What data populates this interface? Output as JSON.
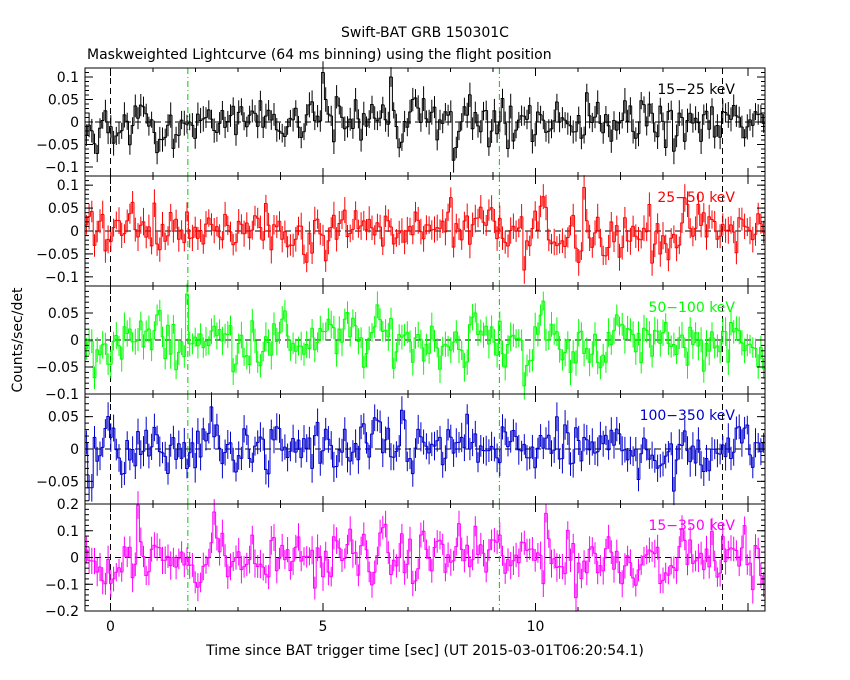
{
  "title": "Swift-BAT GRB 150301C",
  "subtitle": "Maskweighted Lightcurve (64 ms binning) using the flight position",
  "xlabel": "Time since BAT trigger time [sec] (UT 2015-03-01T06:20:54.1)",
  "ylabel": "Counts/sec/det",
  "chart_data": {
    "type": "line",
    "title": "Swift-BAT GRB 150301C",
    "subtitle": "Maskweighted Lightcurve (64 ms binning) using the flight position",
    "xlabel": "Time since BAT trigger time [sec] (UT 2015-03-01T06:20:54.1)",
    "ylabel": "Counts/sec/det",
    "xlim": [
      -0.6,
      15.4
    ],
    "x_ticks": [
      0,
      5,
      10
    ],
    "bin_width_s": 0.064,
    "vertical_markers": {
      "black_dashed": [
        0,
        14.4
      ],
      "green_dashdot": [
        1.82,
        9.15
      ]
    },
    "panels": [
      {
        "name": "15-25 keV",
        "label": "15−25 keV",
        "color": "#000000",
        "ylim": [
          -0.12,
          0.12
        ],
        "y_ticks": [
          0.1,
          0.05,
          0,
          -0.05,
          -0.1
        ],
        "y_tick_labels": [
          "0.1",
          "0.05",
          "0",
          "−0.05",
          "−0.1"
        ],
        "noise_amp": 0.032,
        "spikes": [
          [
            4.98,
            0.11
          ],
          [
            6.55,
            0.1
          ],
          [
            8.05,
            -0.085
          ],
          [
            -0.35,
            -0.07
          ],
          [
            13.2,
            -0.065
          ],
          [
            11.2,
            0.065
          ]
        ]
      },
      {
        "name": "25-50 keV",
        "label": "25−50 keV",
        "color": "#ff0000",
        "ylim": [
          -0.12,
          0.12
        ],
        "y_ticks": [
          0.1,
          0.05,
          0,
          -0.05,
          -0.1
        ],
        "y_tick_labels": [
          "0.1",
          "0.05",
          "0",
          "−0.05",
          "−0.1"
        ],
        "noise_amp": 0.034,
        "spikes": [
          [
            11.1,
            0.095
          ],
          [
            5.05,
            -0.065
          ],
          [
            9.7,
            -0.085
          ],
          [
            12.7,
            -0.07
          ],
          [
            3.6,
            0.06
          ]
        ]
      },
      {
        "name": "50-100 keV",
        "label": "50−100 keV",
        "color": "#00ff00",
        "ylim": [
          -0.1,
          0.1
        ],
        "y_ticks": [
          0.05,
          0,
          -0.05,
          -0.1
        ],
        "y_tick_labels": [
          "0.05",
          "0",
          "−0.05",
          "−0.1"
        ],
        "noise_amp": 0.03,
        "spikes": [
          [
            1.75,
            0.085
          ],
          [
            9.7,
            -0.085
          ],
          [
            10.8,
            -0.06
          ],
          [
            -0.4,
            -0.07
          ]
        ]
      },
      {
        "name": "100-350 keV",
        "label": "100−350 keV",
        "color": "#0000cc",
        "ylim": [
          -0.085,
          0.085
        ],
        "y_ticks": [
          0.05,
          0,
          -0.05
        ],
        "y_tick_labels": [
          "0.05",
          "0",
          "−0.05"
        ],
        "noise_amp": 0.026,
        "spikes": [
          [
            2.35,
            0.065
          ],
          [
            13.2,
            -0.065
          ],
          [
            -0.5,
            -0.06
          ],
          [
            6.8,
            0.06
          ]
        ]
      },
      {
        "name": "15-350 keV",
        "label": "15−350 keV",
        "color": "#ff00ff",
        "ylim": [
          -0.2,
          0.2
        ],
        "y_ticks": [
          0.2,
          0.1,
          0,
          -0.1,
          -0.2
        ],
        "y_tick_labels": [
          "0.2",
          "0.1",
          "0",
          "−0.1",
          "−0.2"
        ],
        "noise_amp": 0.06,
        "spikes": [
          [
            0.6,
            0.2
          ],
          [
            2.4,
            0.17
          ],
          [
            10.2,
            0.165
          ],
          [
            10.9,
            -0.15
          ],
          [
            15.1,
            -0.12
          ]
        ]
      }
    ]
  }
}
